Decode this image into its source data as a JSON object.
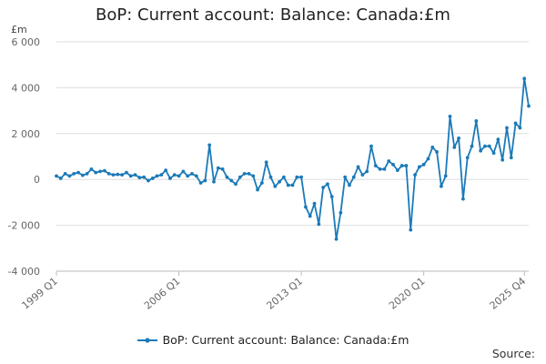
{
  "title": "BoP: Current account: Balance: Canada:£m",
  "unit": "£m",
  "source_label": "Source:",
  "colors": {
    "series": "#1b7ab8",
    "grid": "#dedede",
    "axis": "#bbbbbb",
    "tick_text": "#666666"
  },
  "chart_data": {
    "type": "line",
    "ylim": [
      -4000,
      6000
    ],
    "yticks": [
      -4000,
      -2000,
      0,
      2000,
      4000,
      6000
    ],
    "ytick_labels": [
      "-4 000",
      "-2 000",
      "0",
      "2 000",
      "4 000",
      "6 000"
    ],
    "xtick_labels": [
      "1999 Q1",
      "2006 Q1",
      "2013 Q1",
      "2020 Q1",
      "2025 Q4"
    ],
    "xtick_index": [
      0,
      28,
      56,
      84,
      107
    ],
    "grid": "horizontal",
    "legend_position": "bottom-center",
    "series": [
      {
        "name": "BoP: Current account: Balance: Canada:£m",
        "x_start": "1999 Q1",
        "x_end": "2025 Q4",
        "values": [
          150,
          50,
          250,
          150,
          250,
          300,
          180,
          250,
          450,
          300,
          350,
          380,
          250,
          200,
          220,
          200,
          300,
          150,
          200,
          80,
          100,
          -50,
          50,
          150,
          200,
          400,
          50,
          200,
          150,
          350,
          150,
          250,
          150,
          -150,
          -50,
          1500,
          -100,
          500,
          450,
          100,
          -50,
          -200,
          100,
          250,
          250,
          150,
          -450,
          -150,
          750,
          100,
          -300,
          -100,
          100,
          -250,
          -250,
          100,
          100,
          -1200,
          -1600,
          -1050,
          -1950,
          -350,
          -200,
          -750,
          -2600,
          -1450,
          100,
          -250,
          100,
          550,
          200,
          350,
          1450,
          600,
          450,
          450,
          800,
          650,
          400,
          600,
          600,
          -2200,
          200,
          550,
          650,
          900,
          1400,
          1200,
          -300,
          150,
          2750,
          1400,
          1800,
          -850,
          950,
          1450,
          2550,
          1250,
          1450,
          1450,
          1150,
          1750,
          850,
          2250,
          950,
          2450,
          2250,
          4400,
          3200
        ]
      }
    ]
  }
}
